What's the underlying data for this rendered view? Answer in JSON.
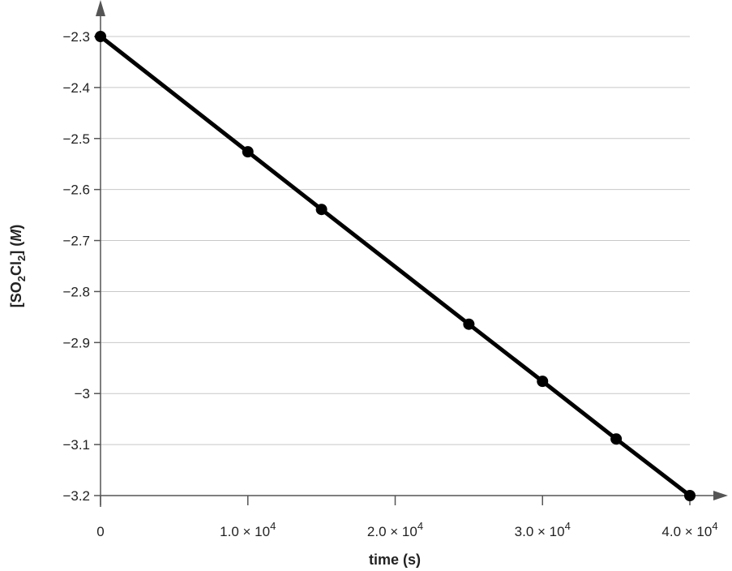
{
  "chart_data": {
    "type": "line",
    "title": "",
    "xlabel": "time (s)",
    "ylabel": {
      "main": "[SO",
      "sub1": "2",
      "mid": "Cl",
      "sub2": "2",
      "tail": "] (",
      "unit": "M",
      "close": ")"
    },
    "xlim": [
      0,
      40000
    ],
    "ylim": [
      -3.2,
      -2.3
    ],
    "grid": "horizontal",
    "x_ticks": [
      {
        "value": 0,
        "mant": "0",
        "exp": ""
      },
      {
        "value": 10000,
        "mant": "1.0 × 10",
        "exp": "4"
      },
      {
        "value": 20000,
        "mant": "2.0 × 10",
        "exp": "4"
      },
      {
        "value": 30000,
        "mant": "3.0 × 10",
        "exp": "4"
      },
      {
        "value": 40000,
        "mant": "4.0 × 10",
        "exp": "4"
      }
    ],
    "y_ticks": [
      {
        "value": -2.3,
        "label": "−2.3"
      },
      {
        "value": -2.4,
        "label": "−2.4"
      },
      {
        "value": -2.5,
        "label": "−2.5"
      },
      {
        "value": -2.6,
        "label": "−2.6"
      },
      {
        "value": -2.7,
        "label": "−2.7"
      },
      {
        "value": -2.8,
        "label": "−2.8"
      },
      {
        "value": -2.9,
        "label": "−2.9"
      },
      {
        "value": -3.0,
        "label": "−3"
      },
      {
        "value": -3.1,
        "label": "−3.1"
      },
      {
        "value": -3.2,
        "label": "−3.2"
      }
    ],
    "series": [
      {
        "x": [
          0,
          10000,
          15000,
          25000,
          30000,
          35000,
          40000
        ],
        "y": [
          -2.3,
          -2.526,
          -2.639,
          -2.864,
          -2.976,
          -3.089,
          -3.2
        ],
        "color": "#000000"
      }
    ],
    "colors": {
      "grid": "#c8c8c8",
      "axis": "#555555",
      "line": "#000000"
    }
  }
}
